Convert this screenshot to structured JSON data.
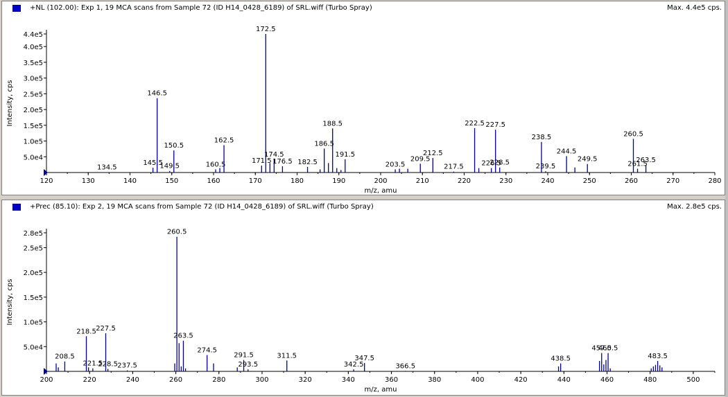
{
  "colors": {
    "peak": "#000099",
    "axis": "#000000",
    "icon": "#0000cc"
  },
  "panels": [
    {
      "title": "+NL (102.00): Exp 1, 19 MCA scans from Sample 72 (ID H14_0428_6189) of SRL.wiff (Turbo Spray)",
      "max": "Max. 4.4e5 cps."
    },
    {
      "title": "+Prec (85.10): Exp 2, 19 MCA scans from Sample 72 (ID H14_0428_6189) of SRL.wiff (Turbo Spray)",
      "max": "Max. 2.8e5 cps."
    }
  ],
  "chart_data": [
    {
      "type": "bar",
      "xlabel": "m/z, amu",
      "ylabel": "Intensity, cps",
      "xlim": [
        120,
        280
      ],
      "ylim": [
        0,
        440000
      ],
      "xticks": [
        "120",
        "130",
        "140",
        "150",
        "160",
        "170",
        "180",
        "190",
        "200",
        "210",
        "220",
        "230",
        "240",
        "250",
        "260",
        "270",
        "280"
      ],
      "yticks": [
        {
          "v": 50000,
          "l": "5.0e4"
        },
        {
          "v": 100000,
          "l": "1.0e5"
        },
        {
          "v": 150000,
          "l": "1.5e5"
        },
        {
          "v": 200000,
          "l": "2.0e5"
        },
        {
          "v": 250000,
          "l": "2.5e5"
        },
        {
          "v": 300000,
          "l": "3.0e5"
        },
        {
          "v": 350000,
          "l": "3.5e5"
        },
        {
          "v": 400000,
          "l": "4.0e5"
        },
        {
          "v": 440000,
          "l": "4.4e5"
        }
      ],
      "peaks": [
        {
          "x": 134.5,
          "y": 1000,
          "label": "134.5"
        },
        {
          "x": 145.5,
          "y": 15000,
          "label": "145.5"
        },
        {
          "x": 146.5,
          "y": 236000,
          "label": "146.5"
        },
        {
          "x": 149.5,
          "y": 5000,
          "label": "149.5"
        },
        {
          "x": 150.5,
          "y": 70000,
          "label": "150.5"
        },
        {
          "x": 160.5,
          "y": 10000,
          "label": "160.5"
        },
        {
          "x": 161.5,
          "y": 14000
        },
        {
          "x": 162.5,
          "y": 87000,
          "label": "162.5"
        },
        {
          "x": 171.5,
          "y": 22000,
          "label": "171.5"
        },
        {
          "x": 172.5,
          "y": 440000,
          "label": "172.5"
        },
        {
          "x": 173.5,
          "y": 30000
        },
        {
          "x": 174.5,
          "y": 42000,
          "label": "174.5"
        },
        {
          "x": 176.5,
          "y": 20000,
          "label": "176.5"
        },
        {
          "x": 182.5,
          "y": 18000,
          "label": "182.5"
        },
        {
          "x": 185.5,
          "y": 10000
        },
        {
          "x": 186.5,
          "y": 76000,
          "label": "186.5"
        },
        {
          "x": 187.5,
          "y": 30000
        },
        {
          "x": 188.5,
          "y": 140000,
          "label": "188.5"
        },
        {
          "x": 189.5,
          "y": 14000
        },
        {
          "x": 190.5,
          "y": 8000
        },
        {
          "x": 191.5,
          "y": 42000,
          "label": "191.5"
        },
        {
          "x": 203.5,
          "y": 10000,
          "label": "203.5"
        },
        {
          "x": 204.5,
          "y": 12000
        },
        {
          "x": 206.5,
          "y": 12000
        },
        {
          "x": 209.5,
          "y": 28000,
          "label": "209.5"
        },
        {
          "x": 212.5,
          "y": 46000,
          "label": "212.5"
        },
        {
          "x": 217.5,
          "y": 3000,
          "label": "217.5"
        },
        {
          "x": 222.5,
          "y": 141000,
          "label": "222.5"
        },
        {
          "x": 223.5,
          "y": 14000
        },
        {
          "x": 226.5,
          "y": 14000,
          "label": "226.5"
        },
        {
          "x": 227.5,
          "y": 136000,
          "label": "227.5"
        },
        {
          "x": 228.5,
          "y": 16000,
          "label": "228.5"
        },
        {
          "x": 238.5,
          "y": 97000,
          "label": "238.5"
        },
        {
          "x": 239.5,
          "y": 4000,
          "label": "239.5"
        },
        {
          "x": 244.5,
          "y": 52000,
          "label": "244.5"
        },
        {
          "x": 246.5,
          "y": 16000
        },
        {
          "x": 249.5,
          "y": 27000,
          "label": "249.5"
        },
        {
          "x": 260.5,
          "y": 107000,
          "label": "260.5"
        },
        {
          "x": 261.5,
          "y": 12000,
          "label": "261.5"
        },
        {
          "x": 263.5,
          "y": 24000,
          "label": "263.5"
        }
      ]
    },
    {
      "type": "bar",
      "xlabel": "m/z, amu",
      "ylabel": "Intensity, cps",
      "xlim": [
        200,
        510
      ],
      "ylim": [
        0,
        280000
      ],
      "xticks": [
        "200",
        "220",
        "240",
        "260",
        "280",
        "300",
        "320",
        "340",
        "360",
        "380",
        "400",
        "420",
        "440",
        "460",
        "480",
        "500"
      ],
      "yticks": [
        {
          "v": 50000,
          "l": "5.0e4"
        },
        {
          "v": 100000,
          "l": "1.0e5"
        },
        {
          "v": 150000,
          "l": "1.5e5"
        },
        {
          "v": 200000,
          "l": "2.0e5"
        },
        {
          "v": 250000,
          "l": "2.5e5"
        },
        {
          "v": 280000,
          "l": "2.8e5"
        }
      ],
      "peaks": [
        {
          "x": 204.5,
          "y": 16000
        },
        {
          "x": 205.5,
          "y": 8000
        },
        {
          "x": 208.5,
          "y": 20000,
          "label": "208.5"
        },
        {
          "x": 218.5,
          "y": 71000,
          "label": "218.5"
        },
        {
          "x": 219.5,
          "y": 8000
        },
        {
          "x": 221.5,
          "y": 6000,
          "label": "221.5"
        },
        {
          "x": 227.5,
          "y": 77000,
          "label": "227.5"
        },
        {
          "x": 228.5,
          "y": 5000,
          "label": "228.5"
        },
        {
          "x": 237.5,
          "y": 2000,
          "label": "237.5"
        },
        {
          "x": 259.5,
          "y": 16000
        },
        {
          "x": 260.5,
          "y": 272000,
          "label": "260.5"
        },
        {
          "x": 261.5,
          "y": 57000
        },
        {
          "x": 262.5,
          "y": 10000
        },
        {
          "x": 263.5,
          "y": 62000,
          "label": "263.5"
        },
        {
          "x": 264.5,
          "y": 6000
        },
        {
          "x": 274.5,
          "y": 33000,
          "label": "274.5"
        },
        {
          "x": 277.5,
          "y": 16000
        },
        {
          "x": 288.5,
          "y": 8000
        },
        {
          "x": 291.5,
          "y": 23000,
          "label": "291.5"
        },
        {
          "x": 293.5,
          "y": 4000,
          "label": "293.5"
        },
        {
          "x": 311.5,
          "y": 22000,
          "label": "311.5"
        },
        {
          "x": 342.5,
          "y": 4000,
          "label": "342.5"
        },
        {
          "x": 347.5,
          "y": 17000,
          "label": "347.5"
        },
        {
          "x": 366.5,
          "y": 1000,
          "label": "366.5"
        },
        {
          "x": 437.5,
          "y": 10000
        },
        {
          "x": 438.5,
          "y": 16000,
          "label": "438.5"
        },
        {
          "x": 456.5,
          "y": 21000
        },
        {
          "x": 457.5,
          "y": 37000,
          "label": "457.5"
        },
        {
          "x": 458.5,
          "y": 14000
        },
        {
          "x": 459.5,
          "y": 23000
        },
        {
          "x": 460.5,
          "y": 37000,
          "label": "460.5"
        },
        {
          "x": 461.5,
          "y": 6000
        },
        {
          "x": 480.5,
          "y": 6000
        },
        {
          "x": 481.5,
          "y": 10000
        },
        {
          "x": 482.5,
          "y": 13000
        },
        {
          "x": 483.5,
          "y": 21000,
          "label": "483.5"
        },
        {
          "x": 484.5,
          "y": 12000
        },
        {
          "x": 485.5,
          "y": 8000
        }
      ]
    }
  ]
}
